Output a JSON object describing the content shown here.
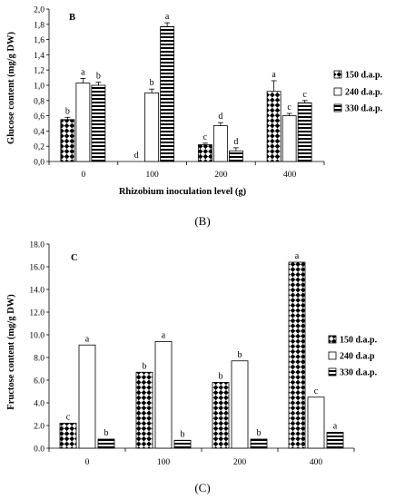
{
  "chart_data": [
    {
      "type": "bar",
      "panel_label": "B",
      "caption": "(B)",
      "xlabel": "Rhizobium inoculation level (g)",
      "ylabel": "Glucose content (mg/g DW)",
      "categories": [
        "0",
        "100",
        "200",
        "400"
      ],
      "ylim": [
        0,
        2.0
      ],
      "yticks": [
        "0,0",
        "0,2",
        "0,4",
        "0,6",
        "0,8",
        "1,0",
        "1,2",
        "1,4",
        "1,6",
        "1,8",
        "2,0"
      ],
      "series": [
        {
          "name": "150 d.a.p.",
          "pattern": "checker",
          "values": [
            0.55,
            0.0,
            0.22,
            0.92
          ],
          "errors": [
            0.03,
            0.0,
            0.02,
            0.14
          ],
          "letters": [
            "b",
            "d",
            "c",
            "a"
          ]
        },
        {
          "name": "240 d.a.p.",
          "pattern": "plain",
          "values": [
            1.03,
            0.9,
            0.47,
            0.6
          ],
          "errors": [
            0.06,
            0.05,
            0.04,
            0.03
          ],
          "letters": [
            "a",
            "b",
            "d",
            "c"
          ]
        },
        {
          "name": "330 d.a.p.",
          "pattern": "hstripe",
          "values": [
            1.0,
            1.77,
            0.14,
            0.77
          ],
          "errors": [
            0.04,
            0.05,
            0.04,
            0.03
          ],
          "letters": [
            "b",
            "a",
            "d",
            "c"
          ]
        }
      ],
      "legend_position": "right"
    },
    {
      "type": "bar",
      "panel_label": "C",
      "caption": "(C)",
      "xlabel": "",
      "ylabel": "Fructose content (mg/g DW)",
      "categories": [
        "0",
        "100",
        "200",
        "400"
      ],
      "ylim": [
        0,
        18
      ],
      "yticks": [
        "0.0",
        "2.0",
        "4.0",
        "6.0",
        "8.0",
        "10.0",
        "12.0",
        "14.0",
        "16.0",
        "18.0"
      ],
      "series": [
        {
          "name": "150 d.a.p.",
          "pattern": "checker",
          "values": [
            2.2,
            6.7,
            5.8,
            16.4
          ],
          "letters": [
            "c",
            "b",
            "b",
            "a"
          ]
        },
        {
          "name": "240 d.a.p",
          "pattern": "plain",
          "values": [
            9.1,
            9.4,
            7.7,
            4.5
          ],
          "letters": [
            "a",
            "a",
            "b",
            "c"
          ]
        },
        {
          "name": "330 d.a.p.",
          "pattern": "hstripe",
          "values": [
            0.8,
            0.7,
            0.8,
            1.4
          ],
          "letters": [
            "b",
            "b",
            "b",
            "a"
          ]
        }
      ],
      "legend_position": "right"
    }
  ]
}
